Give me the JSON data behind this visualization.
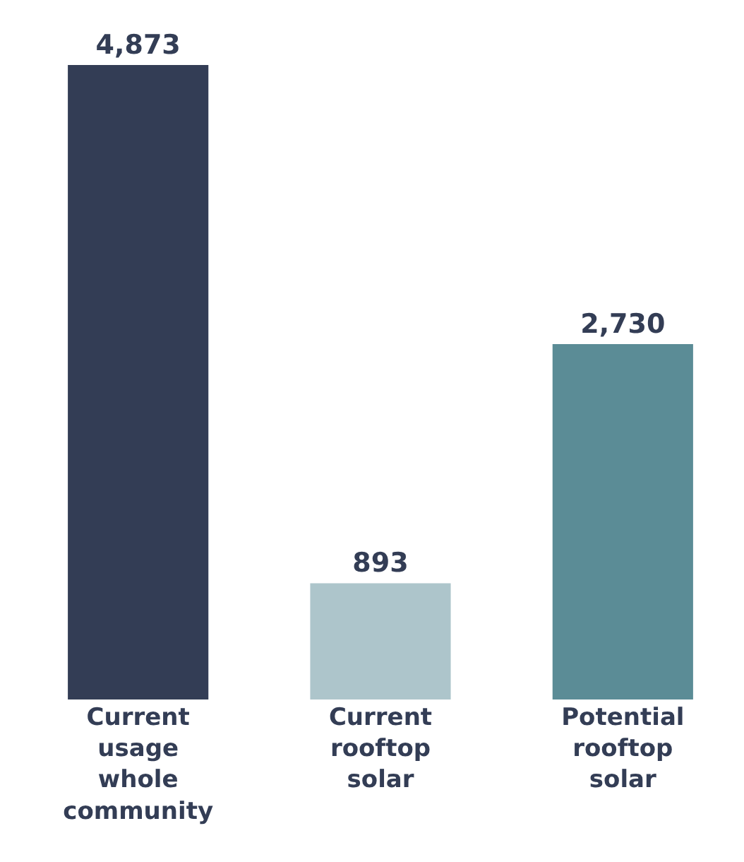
{
  "chart_data": {
    "type": "bar",
    "categories": [
      "Current usage whole community",
      "Current rooftop solar",
      "Potential rooftop solar"
    ],
    "values": [
      4873,
      893,
      2730
    ],
    "value_labels": [
      "4,873",
      "893",
      "2,730"
    ],
    "colors": [
      "#333d55",
      "#adc5cb",
      "#5b8c96"
    ]
  }
}
